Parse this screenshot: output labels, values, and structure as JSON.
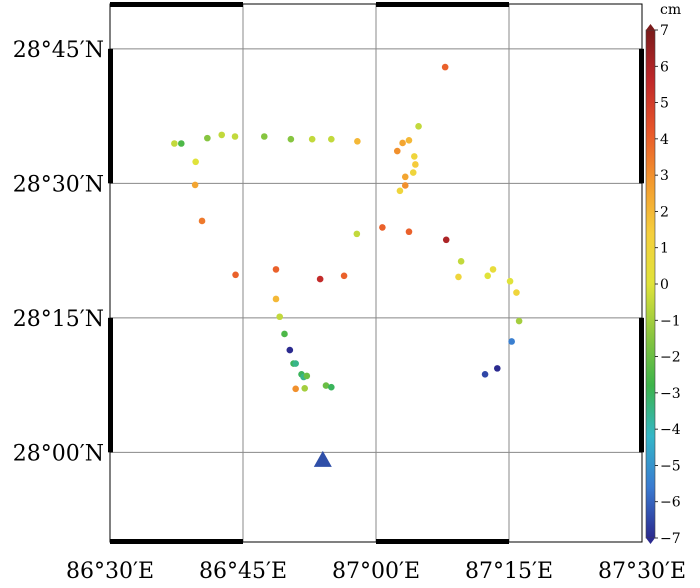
{
  "chart_data": {
    "type": "scatter",
    "map": {
      "lon_range": [
        86.5,
        87.5
      ],
      "lat_range": [
        27.8333,
        28.8333
      ],
      "x_ticks": [
        {
          "value": 86.5,
          "label": "86°30′E"
        },
        {
          "value": 86.75,
          "label": "86°45′E"
        },
        {
          "value": 87.0,
          "label": "87°00′E"
        },
        {
          "value": 87.25,
          "label": "87°15′E"
        },
        {
          "value": 87.5,
          "label": "87°30′E"
        }
      ],
      "y_ticks": [
        {
          "value": 28.0,
          "label": "28°00′N"
        },
        {
          "value": 28.25,
          "label": "28°15′N"
        },
        {
          "value": 28.5,
          "label": "28°30′N"
        },
        {
          "value": 28.75,
          "label": "28°45′N"
        }
      ],
      "grid": true
    },
    "colorbar": {
      "unit": "cm",
      "min": -7,
      "max": 7,
      "tick_labels": [
        "7",
        "6",
        "5",
        "4",
        "3",
        "2",
        "1",
        "0",
        "−1",
        "−2",
        "−3",
        "−4",
        "−5",
        "−6",
        "−7"
      ],
      "tick_values": [
        7,
        6,
        5,
        4,
        3,
        2,
        1,
        0,
        -1,
        -2,
        -3,
        -4,
        -5,
        -6,
        -7
      ],
      "colors": [
        "#2b2a8f",
        "#3a7bd1",
        "#34b6c8",
        "#3cb44a",
        "#8cc63f",
        "#e0e33a",
        "#f5cf3d",
        "#f39a2e",
        "#e8572a",
        "#c0282a",
        "#7a1b1b"
      ]
    },
    "marker": {
      "lon": 86.9,
      "lat": 27.984,
      "shape": "triangle",
      "color": "#2f4fa8"
    },
    "points": [
      {
        "lon": 86.621,
        "lat": 28.574,
        "v": -0.5
      },
      {
        "lon": 86.634,
        "lat": 28.574,
        "v": -2.5
      },
      {
        "lon": 86.661,
        "lat": 28.54,
        "v": 0.0
      },
      {
        "lon": 86.66,
        "lat": 28.497,
        "v": 2.5
      },
      {
        "lon": 86.673,
        "lat": 28.43,
        "v": 3.5
      },
      {
        "lon": 86.683,
        "lat": 28.584,
        "v": -1.5
      },
      {
        "lon": 86.71,
        "lat": 28.59,
        "v": -0.5
      },
      {
        "lon": 86.735,
        "lat": 28.587,
        "v": -0.5
      },
      {
        "lon": 86.736,
        "lat": 28.33,
        "v": 4.0
      },
      {
        "lon": 86.79,
        "lat": 28.587,
        "v": -1.5
      },
      {
        "lon": 86.812,
        "lat": 28.34,
        "v": 4.0
      },
      {
        "lon": 86.812,
        "lat": 28.285,
        "v": 2.0
      },
      {
        "lon": 86.819,
        "lat": 28.252,
        "v": -0.5
      },
      {
        "lon": 86.828,
        "lat": 28.22,
        "v": -2.5
      },
      {
        "lon": 86.838,
        "lat": 28.19,
        "v": -7.0
      },
      {
        "lon": 86.845,
        "lat": 28.165,
        "v": -3.0
      },
      {
        "lon": 86.849,
        "lat": 28.165,
        "v": -3.5
      },
      {
        "lon": 86.84,
        "lat": 28.582,
        "v": -1.5
      },
      {
        "lon": 86.86,
        "lat": 28.145,
        "v": -3.0
      },
      {
        "lon": 86.864,
        "lat": 28.14,
        "v": -3.5
      },
      {
        "lon": 86.87,
        "lat": 28.142,
        "v": -2.0
      },
      {
        "lon": 86.866,
        "lat": 28.119,
        "v": -1.0
      },
      {
        "lon": 86.849,
        "lat": 28.118,
        "v": 3.0
      },
      {
        "lon": 86.88,
        "lat": 28.582,
        "v": -0.5
      },
      {
        "lon": 86.895,
        "lat": 28.322,
        "v": 5.5
      },
      {
        "lon": 86.906,
        "lat": 28.124,
        "v": -2.0
      },
      {
        "lon": 86.916,
        "lat": 28.121,
        "v": -3.0
      },
      {
        "lon": 86.916,
        "lat": 28.582,
        "v": -0.5
      },
      {
        "lon": 86.94,
        "lat": 28.328,
        "v": 4.0
      },
      {
        "lon": 86.965,
        "lat": 28.578,
        "v": 2.0
      },
      {
        "lon": 86.964,
        "lat": 28.406,
        "v": -0.5
      },
      {
        "lon": 87.012,
        "lat": 28.418,
        "v": 4.0
      },
      {
        "lon": 87.04,
        "lat": 28.56,
        "v": 3.0
      },
      {
        "lon": 87.05,
        "lat": 28.575,
        "v": 2.5
      },
      {
        "lon": 87.062,
        "lat": 28.58,
        "v": 2.0
      },
      {
        "lon": 87.072,
        "lat": 28.55,
        "v": 1.0
      },
      {
        "lon": 87.074,
        "lat": 28.535,
        "v": 1.5
      },
      {
        "lon": 87.07,
        "lat": 28.52,
        "v": 1.0
      },
      {
        "lon": 87.055,
        "lat": 28.512,
        "v": 2.5
      },
      {
        "lon": 87.055,
        "lat": 28.496,
        "v": 3.0
      },
      {
        "lon": 87.045,
        "lat": 28.486,
        "v": 1.0
      },
      {
        "lon": 87.062,
        "lat": 28.41,
        "v": 4.0
      },
      {
        "lon": 87.08,
        "lat": 28.606,
        "v": -0.5
      },
      {
        "lon": 87.132,
        "lat": 28.395,
        "v": 6.0
      },
      {
        "lon": 87.13,
        "lat": 28.716,
        "v": 4.0
      },
      {
        "lon": 87.16,
        "lat": 28.355,
        "v": -0.5
      },
      {
        "lon": 87.21,
        "lat": 28.328,
        "v": 0.0
      },
      {
        "lon": 87.22,
        "lat": 28.34,
        "v": 0.5
      },
      {
        "lon": 87.252,
        "lat": 28.318,
        "v": 0.0
      },
      {
        "lon": 87.264,
        "lat": 28.297,
        "v": 1.0
      },
      {
        "lon": 87.269,
        "lat": 28.244,
        "v": -1.0
      },
      {
        "lon": 87.255,
        "lat": 28.206,
        "v": -5.5
      },
      {
        "lon": 87.228,
        "lat": 28.156,
        "v": -7.0
      },
      {
        "lon": 87.205,
        "lat": 28.145,
        "v": -6.5
      },
      {
        "lon": 87.155,
        "lat": 28.326,
        "v": 1.0
      }
    ]
  }
}
